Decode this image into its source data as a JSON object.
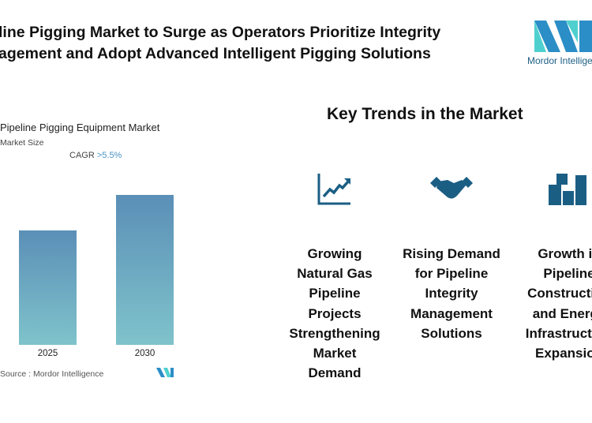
{
  "header": {
    "title_line1": "line Pigging Market to Surge as Operators Prioritize Integrity",
    "title_line2": "agement and Adopt Advanced Intelligent Pigging Solutions"
  },
  "logo": {
    "text": "Mordor Intelligence",
    "colors": [
      "#2b8ec6",
      "#4fd0cf"
    ]
  },
  "chart_data": {
    "type": "bar",
    "title": "Pipeline Pigging Equipment Market",
    "subtitle": "Market Size",
    "annotation": "CAGR",
    "cagr_value": ">5.5%",
    "categories": [
      "2025",
      "2030"
    ],
    "values": [
      100,
      131
    ],
    "source": "Source :  Mordor Intelligence",
    "grid": false
  },
  "trends": {
    "heading": "Key Trends in the Market",
    "icon_color": "#1b5e84",
    "items": [
      {
        "icon": "line-chart-up-icon",
        "label": "Growing Natural Gas Pipeline Projects Strengthening Market Demand"
      },
      {
        "icon": "handshake-icon",
        "label": "Rising Demand for Pipeline Integrity Management Solutions"
      },
      {
        "icon": "buildings-icon",
        "label": "Growth in Pipeline Construction and Energy Infrastructure Expansion"
      }
    ]
  }
}
